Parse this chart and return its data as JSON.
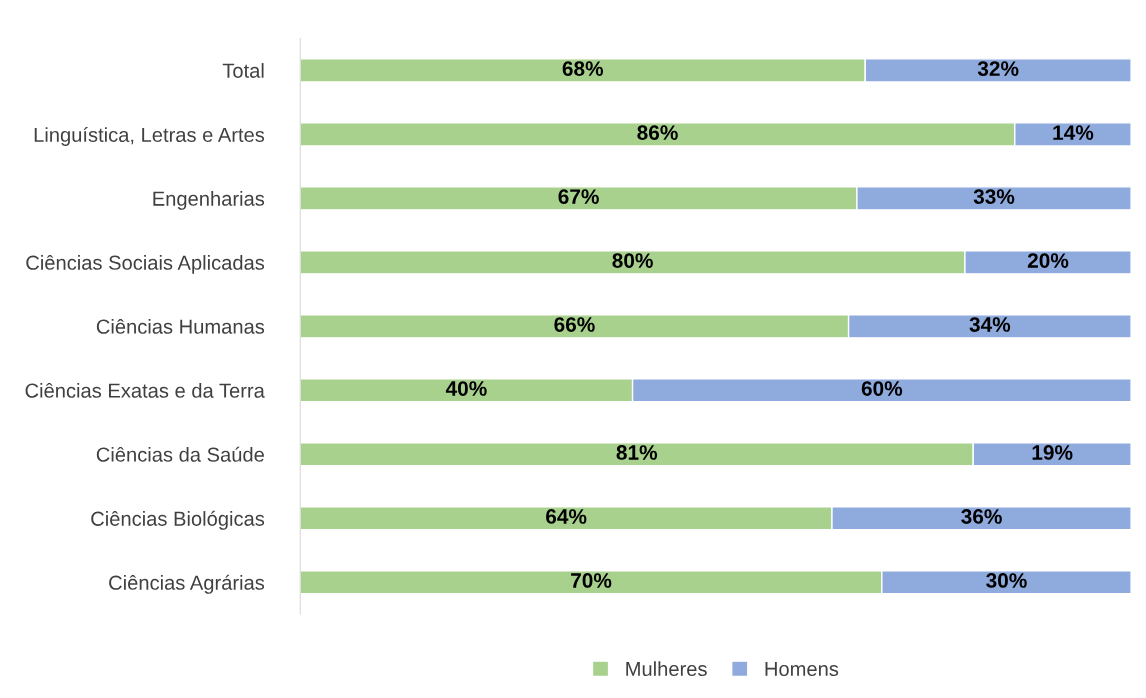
{
  "chart_data": {
    "type": "bar",
    "orientation": "horizontal",
    "stacked": true,
    "legend": "bottom",
    "grid": false,
    "tick_labels": "y",
    "categories": [
      "Total",
      "Linguística, Letras e Artes",
      "Engenharias",
      "Ciências Sociais Aplicadas",
      "Ciências Humanas",
      "Ciências Exatas e da Terra",
      "Ciências da Saúde",
      "Ciências Biológicas",
      "Ciências Agrárias"
    ],
    "series": [
      {
        "name": "Mulheres",
        "color": "#a9d18e",
        "values": [
          68,
          86,
          67,
          80,
          66,
          40,
          81,
          64,
          70
        ],
        "value_labels": [
          "68%",
          "86%",
          "67%",
          "80%",
          "66%",
          "40%",
          "81%",
          "64%",
          "70%"
        ]
      },
      {
        "name": "Homens",
        "color": "#8faadc",
        "values": [
          32,
          14,
          33,
          20,
          34,
          60,
          19,
          36,
          30
        ],
        "value_labels": [
          "32%",
          "14%",
          "33%",
          "20%",
          "34%",
          "60%",
          "19%",
          "36%",
          "30%"
        ]
      }
    ]
  }
}
